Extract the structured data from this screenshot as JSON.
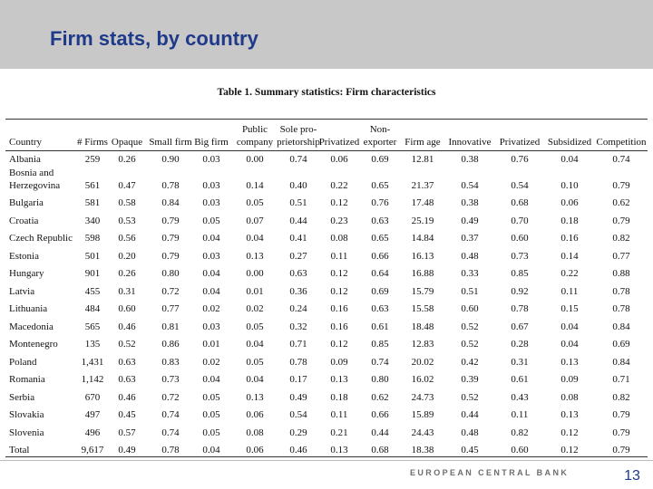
{
  "header": {
    "title": "Firm stats, by country"
  },
  "table": {
    "caption": "Table 1. Summary statistics: Firm characteristics",
    "columns": [
      "Country",
      "# Firms",
      "Opaque",
      "Small firm",
      "Big firm",
      "Public\ncompany",
      "Sole pro-\nprietorship",
      "Privatized",
      "Non-\nexporter",
      "Firm age",
      "Innovative",
      "Privatized",
      "Subsidized",
      "Competition"
    ],
    "rows": [
      [
        "Albania",
        "259",
        "0.26",
        "0.90",
        "0.03",
        "0.00",
        "0.74",
        "0.06",
        "0.69",
        "12.81",
        "0.38",
        "0.76",
        "0.04",
        "0.74"
      ],
      [
        "Bosnia and\nHerzegovina",
        "561",
        "0.47",
        "0.78",
        "0.03",
        "0.14",
        "0.40",
        "0.22",
        "0.65",
        "21.37",
        "0.54",
        "0.54",
        "0.10",
        "0.79"
      ],
      [
        "Bulgaria",
        "581",
        "0.58",
        "0.84",
        "0.03",
        "0.05",
        "0.51",
        "0.12",
        "0.76",
        "17.48",
        "0.38",
        "0.68",
        "0.06",
        "0.62"
      ],
      [
        "Croatia",
        "340",
        "0.53",
        "0.79",
        "0.05",
        "0.07",
        "0.44",
        "0.23",
        "0.63",
        "25.19",
        "0.49",
        "0.70",
        "0.18",
        "0.79"
      ],
      [
        "Czech Republic",
        "598",
        "0.56",
        "0.79",
        "0.04",
        "0.04",
        "0.41",
        "0.08",
        "0.65",
        "14.84",
        "0.37",
        "0.60",
        "0.16",
        "0.82"
      ],
      [
        "Estonia",
        "501",
        "0.20",
        "0.79",
        "0.03",
        "0.13",
        "0.27",
        "0.11",
        "0.66",
        "16.13",
        "0.48",
        "0.73",
        "0.14",
        "0.77"
      ],
      [
        "Hungary",
        "901",
        "0.26",
        "0.80",
        "0.04",
        "0.00",
        "0.63",
        "0.12",
        "0.64",
        "16.88",
        "0.33",
        "0.85",
        "0.22",
        "0.88"
      ],
      [
        "Latvia",
        "455",
        "0.31",
        "0.72",
        "0.04",
        "0.01",
        "0.36",
        "0.12",
        "0.69",
        "15.79",
        "0.51",
        "0.92",
        "0.11",
        "0.78"
      ],
      [
        "Lithuania",
        "484",
        "0.60",
        "0.77",
        "0.02",
        "0.02",
        "0.24",
        "0.16",
        "0.63",
        "15.58",
        "0.60",
        "0.78",
        "0.15",
        "0.78"
      ],
      [
        "Macedonia",
        "565",
        "0.46",
        "0.81",
        "0.03",
        "0.05",
        "0.32",
        "0.16",
        "0.61",
        "18.48",
        "0.52",
        "0.67",
        "0.04",
        "0.84"
      ],
      [
        "Montenegro",
        "135",
        "0.52",
        "0.86",
        "0.01",
        "0.04",
        "0.71",
        "0.12",
        "0.85",
        "12.83",
        "0.52",
        "0.28",
        "0.04",
        "0.69"
      ],
      [
        "Poland",
        "1,431",
        "0.63",
        "0.83",
        "0.02",
        "0.05",
        "0.78",
        "0.09",
        "0.74",
        "20.02",
        "0.42",
        "0.31",
        "0.13",
        "0.84"
      ],
      [
        "Romania",
        "1,142",
        "0.63",
        "0.73",
        "0.04",
        "0.04",
        "0.17",
        "0.13",
        "0.80",
        "16.02",
        "0.39",
        "0.61",
        "0.09",
        "0.71"
      ],
      [
        "Serbia",
        "670",
        "0.46",
        "0.72",
        "0.05",
        "0.13",
        "0.49",
        "0.18",
        "0.62",
        "24.73",
        "0.52",
        "0.43",
        "0.08",
        "0.82"
      ],
      [
        "Slovakia",
        "497",
        "0.45",
        "0.74",
        "0.05",
        "0.06",
        "0.54",
        "0.11",
        "0.66",
        "15.89",
        "0.44",
        "0.11",
        "0.13",
        "0.79"
      ],
      [
        "Slovenia",
        "496",
        "0.57",
        "0.74",
        "0.05",
        "0.08",
        "0.29",
        "0.21",
        "0.44",
        "24.43",
        "0.48",
        "0.82",
        "0.12",
        "0.79"
      ],
      [
        "Total",
        "9,617",
        "0.49",
        "0.78",
        "0.04",
        "0.06",
        "0.46",
        "0.13",
        "0.68",
        "18.38",
        "0.45",
        "0.60",
        "0.12",
        "0.79"
      ]
    ]
  },
  "footer": {
    "organization": "EUROPEAN CENTRAL BANK",
    "page": "13"
  }
}
